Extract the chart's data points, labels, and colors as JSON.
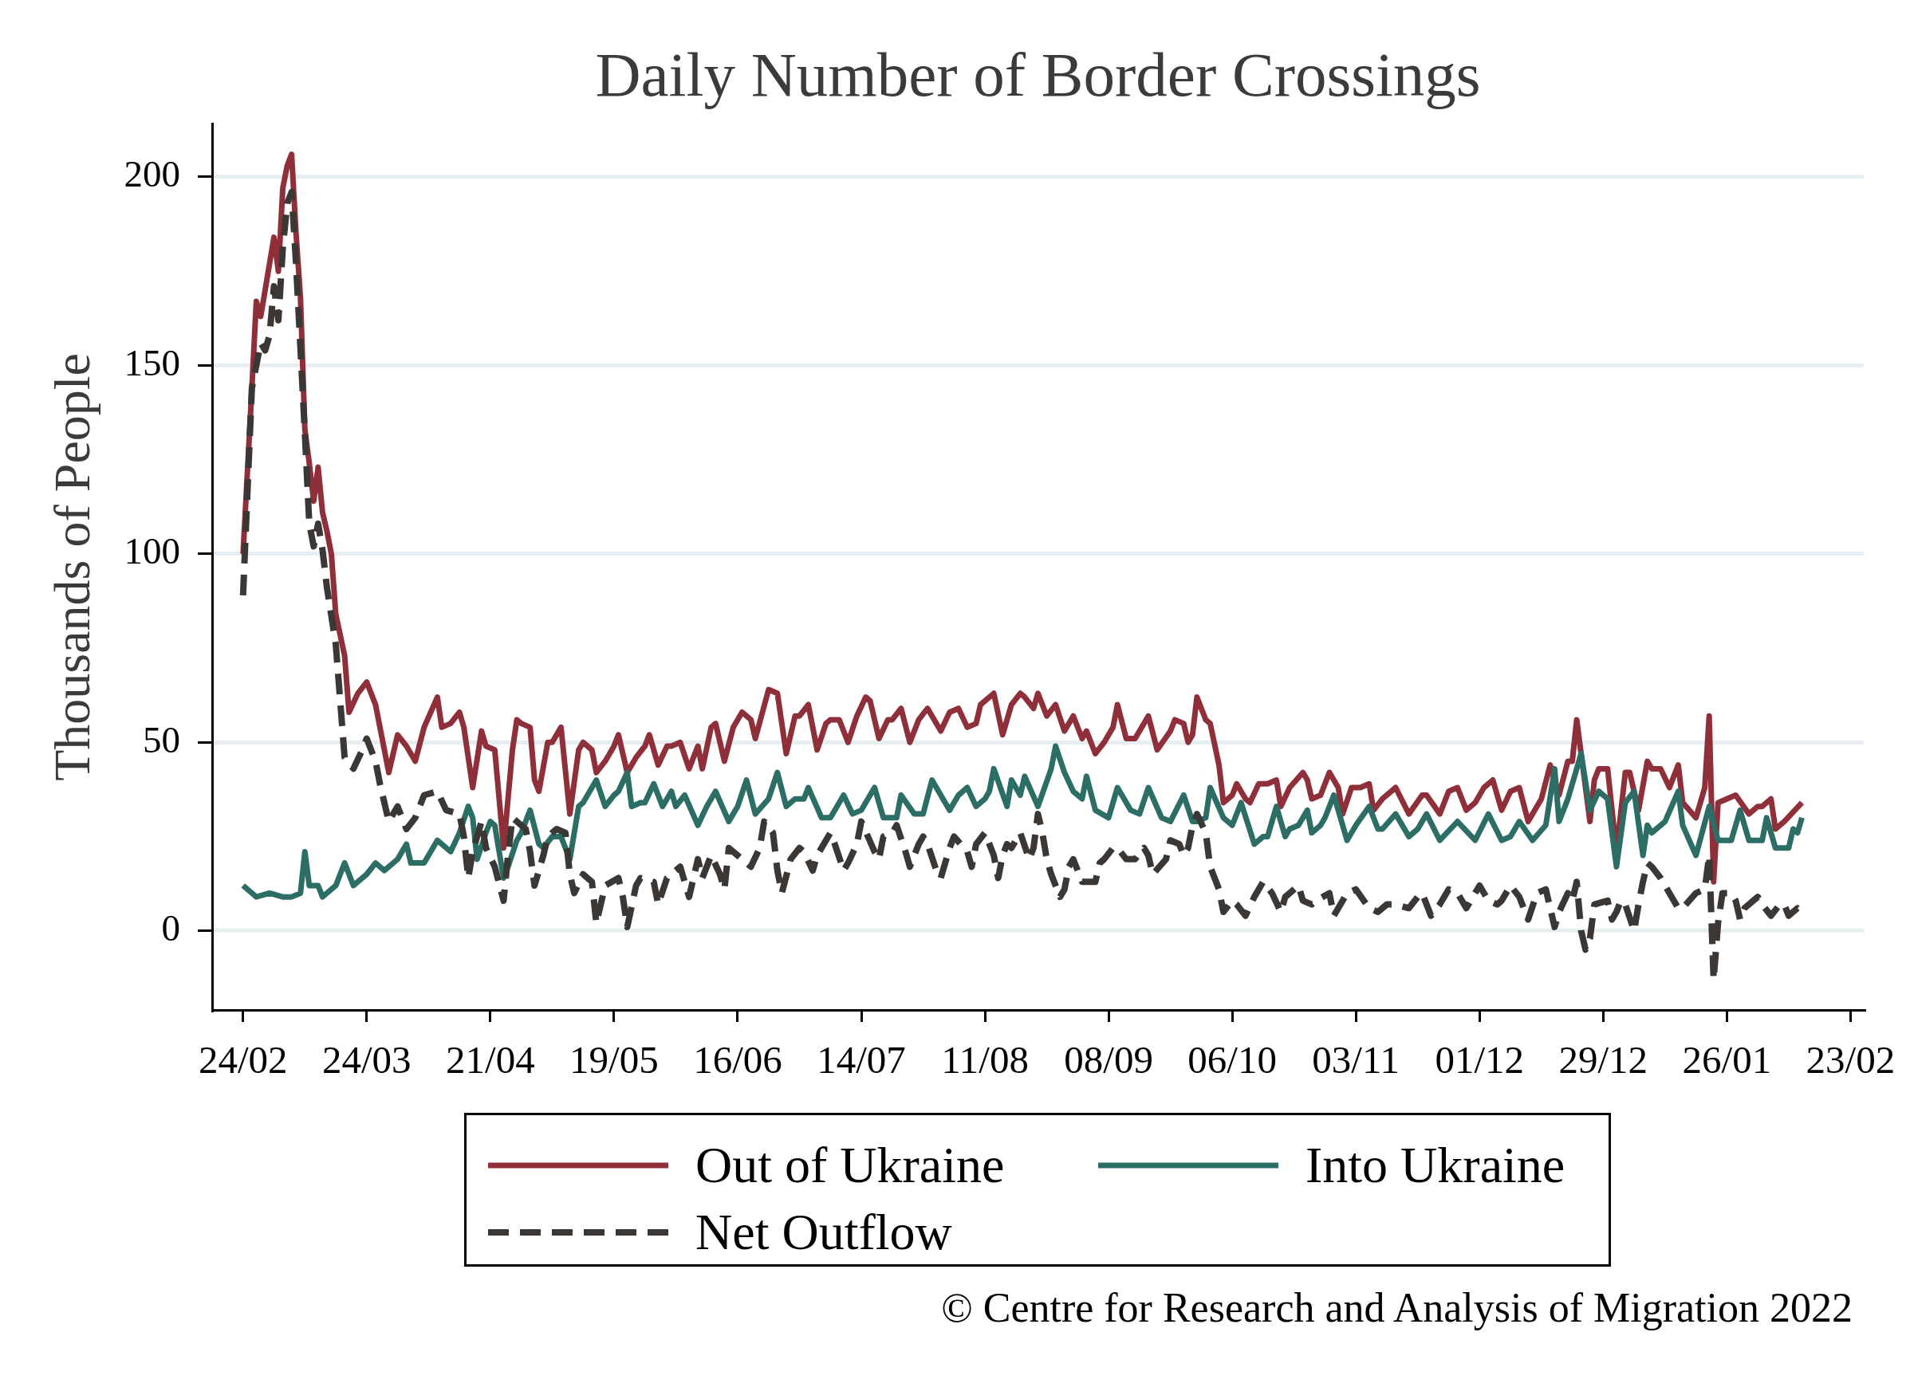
{
  "chart_data": {
    "type": "line",
    "title": "Daily Number of Border Crossings",
    "ylabel": "Thousands of People",
    "xlim": [
      "2022-02-17",
      "2023-02-26"
    ],
    "xticks": [
      {
        "value": "2022-02-24",
        "label": "24/02"
      },
      {
        "value": "2022-03-24",
        "label": "24/03"
      },
      {
        "value": "2022-04-21",
        "label": "21/04"
      },
      {
        "value": "2022-05-19",
        "label": "19/05"
      },
      {
        "value": "2022-06-16",
        "label": "16/06"
      },
      {
        "value": "2022-07-14",
        "label": "14/07"
      },
      {
        "value": "2022-08-11",
        "label": "11/08"
      },
      {
        "value": "2022-09-08",
        "label": "08/09"
      },
      {
        "value": "2022-10-06",
        "label": "06/10"
      },
      {
        "value": "2022-11-03",
        "label": "03/11"
      },
      {
        "value": "2022-12-01",
        "label": "01/12"
      },
      {
        "value": "2022-12-29",
        "label": "29/12"
      },
      {
        "value": "2023-01-26",
        "label": "26/01"
      },
      {
        "value": "2023-02-23",
        "label": "23/02"
      }
    ],
    "ylim": [
      -21,
      214
    ],
    "yticks": [
      0,
      50,
      100,
      150,
      200
    ],
    "grid": "y",
    "legend": "bottom",
    "marker": "none",
    "line_style": "solid",
    "annotations": [
      "© Centre for Research and Analysis of Migration 2022"
    ],
    "series": [
      {
        "name": "Out of Ukraine",
        "color": "#8f2f39",
        "x": [
          "2022-02-24",
          "2022-02-26",
          "2022-02-27",
          "2022-02-28",
          "2022-03-01",
          "2022-03-03",
          "2022-03-04",
          "2022-03-05",
          "2022-03-06",
          "2022-03-07",
          "2022-03-08",
          "2022-03-09",
          "2022-03-10",
          "2022-03-11",
          "2022-03-12",
          "2022-03-13",
          "2022-03-14",
          "2022-03-15",
          "2022-03-16",
          "2022-03-17",
          "2022-03-19",
          "2022-03-20",
          "2022-03-22",
          "2022-03-24",
          "2022-03-26",
          "2022-03-29",
          "2022-03-31",
          "2022-04-02",
          "2022-04-04",
          "2022-04-06",
          "2022-04-09",
          "2022-04-10",
          "2022-04-12",
          "2022-04-14",
          "2022-04-15",
          "2022-04-17",
          "2022-04-19",
          "2022-04-20",
          "2022-04-22",
          "2022-04-24",
          "2022-04-26",
          "2022-04-27",
          "2022-04-28",
          "2022-04-30",
          "2022-05-01",
          "2022-05-02",
          "2022-05-04",
          "2022-05-05",
          "2022-05-07",
          "2022-05-09",
          "2022-05-11",
          "2022-05-12",
          "2022-05-14",
          "2022-05-15",
          "2022-05-17",
          "2022-05-19",
          "2022-05-20",
          "2022-05-22",
          "2022-05-24",
          "2022-05-26",
          "2022-05-27",
          "2022-05-29",
          "2022-05-31",
          "2022-06-01",
          "2022-06-03",
          "2022-06-05",
          "2022-06-07",
          "2022-06-08",
          "2022-06-10",
          "2022-06-11",
          "2022-06-13",
          "2022-06-15",
          "2022-06-16",
          "2022-06-17",
          "2022-06-19",
          "2022-06-20",
          "2022-06-23",
          "2022-06-25",
          "2022-06-27",
          "2022-06-29",
          "2022-06-30",
          "2022-07-02",
          "2022-07-04",
          "2022-07-06",
          "2022-07-07",
          "2022-07-09",
          "2022-07-11",
          "2022-07-13",
          "2022-07-15",
          "2022-07-16",
          "2022-07-18",
          "2022-07-20",
          "2022-07-21",
          "2022-07-23",
          "2022-07-25",
          "2022-07-27",
          "2022-07-29",
          "2022-08-01",
          "2022-08-03",
          "2022-08-05",
          "2022-08-07",
          "2022-08-09",
          "2022-08-10",
          "2022-08-13",
          "2022-08-15",
          "2022-08-17",
          "2022-08-19",
          "2022-08-20",
          "2022-08-22",
          "2022-08-23",
          "2022-08-25",
          "2022-08-27",
          "2022-08-29",
          "2022-08-31",
          "2022-09-02",
          "2022-09-03",
          "2022-09-05",
          "2022-09-07",
          "2022-09-09",
          "2022-09-10",
          "2022-09-12",
          "2022-09-14",
          "2022-09-17",
          "2022-09-19",
          "2022-09-22",
          "2022-09-23",
          "2022-09-25",
          "2022-09-26",
          "2022-09-27",
          "2022-09-28",
          "2022-09-30",
          "2022-10-01",
          "2022-10-03",
          "2022-10-04",
          "2022-10-06",
          "2022-10-07",
          "2022-10-09",
          "2022-10-10",
          "2022-10-12",
          "2022-10-14",
          "2022-10-16",
          "2022-10-17",
          "2022-10-19",
          "2022-10-22",
          "2022-10-23",
          "2022-10-24",
          "2022-10-26",
          "2022-10-28",
          "2022-10-30",
          "2022-10-31",
          "2022-11-02",
          "2022-11-04",
          "2022-11-06",
          "2022-11-07",
          "2022-11-09",
          "2022-11-12",
          "2022-11-15",
          "2022-11-18",
          "2022-11-19",
          "2022-11-22",
          "2022-11-24",
          "2022-11-26",
          "2022-11-28",
          "2022-11-30",
          "2022-12-02",
          "2022-12-04",
          "2022-12-06",
          "2022-12-08",
          "2022-12-10",
          "2022-12-12",
          "2022-12-15",
          "2022-12-17",
          "2022-12-19",
          "2022-12-21",
          "2022-12-22",
          "2022-12-23",
          "2022-12-24",
          "2022-12-26",
          "2022-12-27",
          "2022-12-28",
          "2022-12-30",
          "2023-01-01",
          "2023-01-03",
          "2023-01-04",
          "2023-01-06",
          "2023-01-08",
          "2023-01-09",
          "2023-01-11",
          "2023-01-13",
          "2023-01-15",
          "2023-01-16",
          "2023-01-19",
          "2023-01-21",
          "2023-01-22",
          "2023-01-23",
          "2023-01-24",
          "2023-01-26",
          "2023-01-28",
          "2023-01-31",
          "2023-02-02",
          "2023-02-03",
          "2023-02-05",
          "2023-02-06",
          "2023-02-08",
          "2023-02-12"
        ],
        "values": [
          100,
          144,
          167,
          163,
          170,
          184,
          175,
          197,
          203,
          206,
          185,
          168,
          133,
          124,
          114,
          123,
          111,
          106,
          100,
          84,
          73,
          58,
          63,
          66,
          60,
          42,
          52,
          49,
          45,
          54,
          62,
          54,
          55,
          58,
          54,
          38,
          53,
          49,
          48,
          22,
          48,
          56,
          55,
          54,
          40,
          37,
          50,
          50,
          54,
          31,
          48,
          50,
          48,
          42,
          45,
          49,
          52,
          42,
          46,
          49,
          52,
          44,
          49,
          49,
          50,
          43,
          49,
          43,
          54,
          55,
          45,
          54,
          56,
          58,
          56,
          51,
          64,
          63,
          47,
          57,
          57,
          60,
          48,
          55,
          56,
          56,
          50,
          57,
          62,
          61,
          51,
          56,
          56,
          59,
          50,
          56,
          59,
          53,
          58,
          59,
          54,
          55,
          60,
          63,
          52,
          60,
          63,
          62,
          59,
          63,
          57,
          60,
          53,
          57,
          51,
          53,
          47,
          50,
          54,
          60,
          51,
          51,
          57,
          48,
          53,
          56,
          55,
          50,
          52,
          62,
          56,
          55,
          44,
          34,
          36,
          39,
          35,
          34,
          39,
          39,
          40,
          33,
          38,
          42,
          40,
          35,
          36,
          42,
          38,
          31,
          38,
          38,
          39,
          32,
          35,
          38,
          31,
          36,
          36,
          31,
          37,
          38,
          32,
          34,
          38,
          40,
          32,
          37,
          38,
          29,
          35,
          44,
          36,
          45,
          45,
          56,
          47,
          29,
          40,
          43,
          43,
          21,
          42,
          42,
          32,
          45,
          43,
          43,
          38,
          44,
          34,
          30,
          38,
          57,
          13,
          34,
          35,
          36,
          31,
          33,
          33,
          35,
          27,
          29,
          34
        ]
      },
      {
        "name": "Into Ukraine",
        "color": "#2c6e66",
        "x": [
          "2022-02-24",
          "2022-02-27",
          "2022-03-02",
          "2022-03-05",
          "2022-03-07",
          "2022-03-09",
          "2022-03-10",
          "2022-03-11",
          "2022-03-13",
          "2022-03-14",
          "2022-03-17",
          "2022-03-19",
          "2022-03-21",
          "2022-03-24",
          "2022-03-26",
          "2022-03-28",
          "2022-03-31",
          "2022-04-02",
          "2022-04-03",
          "2022-04-06",
          "2022-04-09",
          "2022-04-10",
          "2022-04-12",
          "2022-04-14",
          "2022-04-16",
          "2022-04-17",
          "2022-04-18",
          "2022-04-20",
          "2022-04-21",
          "2022-04-22",
          "2022-04-24",
          "2022-04-25",
          "2022-04-27",
          "2022-04-28",
          "2022-04-30",
          "2022-05-02",
          "2022-05-03",
          "2022-05-05",
          "2022-05-07",
          "2022-05-09",
          "2022-05-11",
          "2022-05-12",
          "2022-05-15",
          "2022-05-17",
          "2022-05-19",
          "2022-05-20",
          "2022-05-22",
          "2022-05-23",
          "2022-05-25",
          "2022-05-26",
          "2022-05-28",
          "2022-05-30",
          "2022-06-01",
          "2022-06-02",
          "2022-06-04",
          "2022-06-07",
          "2022-06-09",
          "2022-06-11",
          "2022-06-14",
          "2022-06-16",
          "2022-06-18",
          "2022-06-20",
          "2022-06-23",
          "2022-06-25",
          "2022-06-27",
          "2022-06-29",
          "2022-07-01",
          "2022-07-02",
          "2022-07-05",
          "2022-07-07",
          "2022-07-10",
          "2022-07-12",
          "2022-07-14",
          "2022-07-17",
          "2022-07-19",
          "2022-07-22",
          "2022-07-23",
          "2022-07-26",
          "2022-07-28",
          "2022-07-30",
          "2022-08-02",
          "2022-08-03",
          "2022-08-05",
          "2022-08-07",
          "2022-08-09",
          "2022-08-11",
          "2022-08-12",
          "2022-08-13",
          "2022-08-16",
          "2022-08-17",
          "2022-08-19",
          "2022-08-20",
          "2022-08-23",
          "2022-08-26",
          "2022-08-27",
          "2022-08-29",
          "2022-08-31",
          "2022-09-02",
          "2022-09-03",
          "2022-09-05",
          "2022-09-08",
          "2022-09-10",
          "2022-09-13",
          "2022-09-15",
          "2022-09-17",
          "2022-09-20",
          "2022-09-22",
          "2022-09-25",
          "2022-09-27",
          "2022-09-28",
          "2022-09-30",
          "2022-10-01",
          "2022-10-04",
          "2022-10-06",
          "2022-10-08",
          "2022-10-11",
          "2022-10-13",
          "2022-10-14",
          "2022-10-16",
          "2022-10-18",
          "2022-10-19",
          "2022-10-21",
          "2022-10-23",
          "2022-10-24",
          "2022-10-26",
          "2022-10-27",
          "2022-10-29",
          "2022-11-01",
          "2022-11-03",
          "2022-11-06",
          "2022-11-08",
          "2022-11-09",
          "2022-11-12",
          "2022-11-15",
          "2022-11-17",
          "2022-11-19",
          "2022-11-22",
          "2022-11-26",
          "2022-11-30",
          "2022-12-03",
          "2022-12-06",
          "2022-12-08",
          "2022-12-10",
          "2022-12-13",
          "2022-12-16",
          "2022-12-18",
          "2022-12-19",
          "2022-12-21",
          "2022-12-24",
          "2022-12-26",
          "2022-12-28",
          "2022-12-30",
          "2023-01-01",
          "2023-01-03",
          "2023-01-05",
          "2023-01-07",
          "2023-01-08",
          "2023-01-09",
          "2023-01-12",
          "2023-01-15",
          "2023-01-16",
          "2023-01-19",
          "2023-01-22",
          "2023-01-24",
          "2023-01-27",
          "2023-01-29",
          "2023-01-31",
          "2023-02-03",
          "2023-02-04",
          "2023-02-06",
          "2023-02-09",
          "2023-02-10",
          "2023-02-11",
          "2023-02-12"
        ],
        "values": [
          12,
          9,
          10,
          9,
          9,
          10,
          21,
          12,
          12,
          9,
          12,
          18,
          12,
          15,
          18,
          16,
          19,
          23,
          18,
          18,
          24,
          23,
          21,
          26,
          33,
          30,
          19,
          26,
          29,
          28,
          14,
          17,
          24,
          26,
          32,
          23,
          22,
          25,
          25,
          19,
          33,
          34,
          40,
          33,
          36,
          37,
          42,
          33,
          34,
          34,
          39,
          33,
          37,
          33,
          36,
          28,
          33,
          37,
          29,
          33,
          40,
          31,
          35,
          42,
          33,
          35,
          35,
          38,
          30,
          30,
          36,
          31,
          32,
          38,
          30,
          30,
          36,
          31,
          31,
          40,
          34,
          32,
          36,
          38,
          33,
          35,
          37,
          43,
          33,
          40,
          36,
          41,
          33,
          43,
          49,
          42,
          37,
          35,
          41,
          32,
          30,
          38,
          32,
          31,
          38,
          30,
          29,
          36,
          29,
          29,
          30,
          38,
          30,
          28,
          34,
          23,
          25,
          25,
          33,
          25,
          27,
          28,
          32,
          26,
          28,
          30,
          36,
          24,
          28,
          33,
          27,
          27,
          31,
          25,
          27,
          31,
          24,
          29,
          24,
          31,
          24,
          25,
          29,
          24,
          28,
          43,
          29,
          35,
          47,
          32,
          37,
          35,
          17,
          34,
          37,
          20,
          28,
          26,
          29,
          37,
          28,
          20,
          33,
          24,
          24,
          32,
          24,
          24,
          30,
          22,
          22,
          27,
          26,
          30
        ]
      },
      {
        "name": "Net Outflow",
        "color": "#3b3735",
        "line_style": "dashed",
        "x": [
          "2022-02-24",
          "2022-02-26",
          "2022-02-28",
          "2022-03-01",
          "2022-03-02",
          "2022-03-03",
          "2022-03-04",
          "2022-03-05",
          "2022-03-06",
          "2022-03-07",
          "2022-03-08",
          "2022-03-10",
          "2022-03-11",
          "2022-03-12",
          "2022-03-13",
          "2022-03-14",
          "2022-03-15",
          "2022-03-17",
          "2022-03-18",
          "2022-03-19",
          "2022-03-21",
          "2022-03-23",
          "2022-03-24",
          "2022-03-26",
          "2022-03-27",
          "2022-03-29",
          "2022-03-31",
          "2022-04-02",
          "2022-04-04",
          "2022-04-06",
          "2022-04-09",
          "2022-04-11",
          "2022-04-14",
          "2022-04-15",
          "2022-04-16",
          "2022-04-17",
          "2022-04-19",
          "2022-04-20",
          "2022-04-22",
          "2022-04-24",
          "2022-04-25",
          "2022-04-26",
          "2022-04-29",
          "2022-04-30",
          "2022-05-01",
          "2022-05-03",
          "2022-05-04",
          "2022-05-06",
          "2022-05-08",
          "2022-05-09",
          "2022-05-10",
          "2022-05-12",
          "2022-05-14",
          "2022-05-15",
          "2022-05-17",
          "2022-05-20",
          "2022-05-21",
          "2022-05-22",
          "2022-05-24",
          "2022-05-25",
          "2022-05-28",
          "2022-05-29",
          "2022-05-31",
          "2022-06-03",
          "2022-06-05",
          "2022-06-07",
          "2022-06-08",
          "2022-06-10",
          "2022-06-12",
          "2022-06-13",
          "2022-06-14",
          "2022-06-16",
          "2022-06-19",
          "2022-06-21",
          "2022-06-22",
          "2022-06-24",
          "2022-06-25",
          "2022-06-26",
          "2022-06-28",
          "2022-06-30",
          "2022-07-01",
          "2022-07-03",
          "2022-07-04",
          "2022-07-07",
          "2022-07-08",
          "2022-07-10",
          "2022-07-11",
          "2022-07-13",
          "2022-07-14",
          "2022-07-17",
          "2022-07-18",
          "2022-07-19",
          "2022-07-21",
          "2022-07-22",
          "2022-07-24",
          "2022-07-25",
          "2022-07-27",
          "2022-07-28",
          "2022-07-29",
          "2022-07-31",
          "2022-08-01",
          "2022-08-03",
          "2022-08-04",
          "2022-08-07",
          "2022-08-08",
          "2022-08-09",
          "2022-08-11",
          "2022-08-13",
          "2022-08-14",
          "2022-08-15",
          "2022-08-16",
          "2022-08-17",
          "2022-08-19",
          "2022-08-21",
          "2022-08-22",
          "2022-08-23",
          "2022-08-24",
          "2022-08-25",
          "2022-08-26",
          "2022-08-28",
          "2022-08-29",
          "2022-08-30",
          "2022-08-31",
          "2022-09-02",
          "2022-09-05",
          "2022-09-06",
          "2022-09-07",
          "2022-09-09",
          "2022-09-10",
          "2022-09-12",
          "2022-09-14",
          "2022-09-16",
          "2022-09-17",
          "2022-09-18",
          "2022-09-21",
          "2022-09-22",
          "2022-09-24",
          "2022-09-25",
          "2022-09-26",
          "2022-09-27",
          "2022-09-28",
          "2022-09-30",
          "2022-10-01",
          "2022-10-02",
          "2022-10-03",
          "2022-10-04",
          "2022-10-06",
          "2022-10-07",
          "2022-10-09",
          "2022-10-11",
          "2022-10-13",
          "2022-10-15",
          "2022-10-17",
          "2022-10-18",
          "2022-10-21",
          "2022-10-22",
          "2022-10-24",
          "2022-10-25",
          "2022-10-28",
          "2022-10-29",
          "2022-11-01",
          "2022-11-03",
          "2022-11-06",
          "2022-11-08",
          "2022-11-10",
          "2022-11-12",
          "2022-11-15",
          "2022-11-17",
          "2022-11-18",
          "2022-11-20",
          "2022-11-22",
          "2022-11-24",
          "2022-11-26",
          "2022-11-28",
          "2022-11-30",
          "2022-12-01",
          "2022-12-03",
          "2022-12-05",
          "2022-12-06",
          "2022-12-08",
          "2022-12-10",
          "2022-12-12",
          "2022-12-14",
          "2022-12-16",
          "2022-12-17",
          "2022-12-18",
          "2022-12-19",
          "2022-12-21",
          "2022-12-22",
          "2022-12-23",
          "2022-12-24",
          "2022-12-25",
          "2022-12-26",
          "2022-12-27",
          "2022-12-30",
          "2022-12-31",
          "2023-01-01",
          "2023-01-02",
          "2023-01-03",
          "2023-01-05",
          "2023-01-06",
          "2023-01-07",
          "2023-01-08",
          "2023-01-09",
          "2023-01-11",
          "2023-01-13",
          "2023-01-15",
          "2023-01-16",
          "2023-01-19",
          "2023-01-21",
          "2023-01-22",
          "2023-01-23",
          "2023-01-24",
          "2023-01-25",
          "2023-01-27",
          "2023-01-28",
          "2023-01-29",
          "2023-01-30",
          "2023-02-02",
          "2023-02-03",
          "2023-02-05",
          "2023-02-07",
          "2023-02-08",
          "2023-02-09",
          "2023-02-11",
          "2023-02-12"
        ],
        "values": [
          89,
          144,
          156,
          154,
          158,
          171,
          162,
          181,
          193,
          196,
          177,
          132,
          108,
          102,
          108,
          101,
          91,
          76,
          61,
          46,
          43,
          48,
          51,
          45,
          39,
          29,
          33,
          27,
          30,
          36,
          37,
          32,
          31,
          25,
          14,
          21,
          29,
          22,
          17,
          8,
          20,
          30,
          27,
          21,
          12,
          20,
          25,
          27,
          26,
          15,
          10,
          15,
          13,
          2,
          12,
          14,
          9,
          1,
          12,
          14,
          13,
          7,
          14,
          17,
          9,
          19,
          14,
          20,
          15,
          11,
          22,
          20,
          17,
          22,
          29,
          26,
          16,
          10,
          19,
          22,
          21,
          16,
          20,
          26,
          23,
          16,
          18,
          23,
          29,
          21,
          19,
          25,
          26,
          28,
          21,
          17,
          23,
          25,
          23,
          16,
          14,
          22,
          25,
          21,
          17,
          23,
          26,
          20,
          14,
          20,
          23,
          22,
          26,
          19,
          22,
          31,
          26,
          19,
          15,
          9,
          11,
          17,
          19,
          13,
          13,
          18,
          19,
          22,
          22,
          19,
          19,
          22,
          20,
          15,
          19,
          24,
          23,
          20,
          22,
          28,
          31,
          26,
          17,
          14,
          11,
          5,
          8,
          7,
          4,
          9,
          13,
          10,
          5,
          9,
          12,
          8,
          7,
          8,
          10,
          4,
          10,
          11,
          6,
          5,
          7,
          7,
          6,
          9,
          10,
          4,
          7,
          11,
          10,
          6,
          10,
          12,
          8,
          7,
          8,
          12,
          9,
          3,
          10,
          11,
          6,
          1,
          5,
          10,
          8,
          13,
          0,
          -5,
          -2,
          7,
          8,
          3,
          5,
          8,
          7,
          0,
          7,
          13,
          18,
          17,
          14,
          10,
          6,
          6,
          10,
          11,
          20,
          -13,
          2,
          10,
          10,
          8,
          3,
          6,
          9,
          7,
          4,
          7,
          7,
          4,
          6,
          5
        ]
      }
    ]
  }
}
